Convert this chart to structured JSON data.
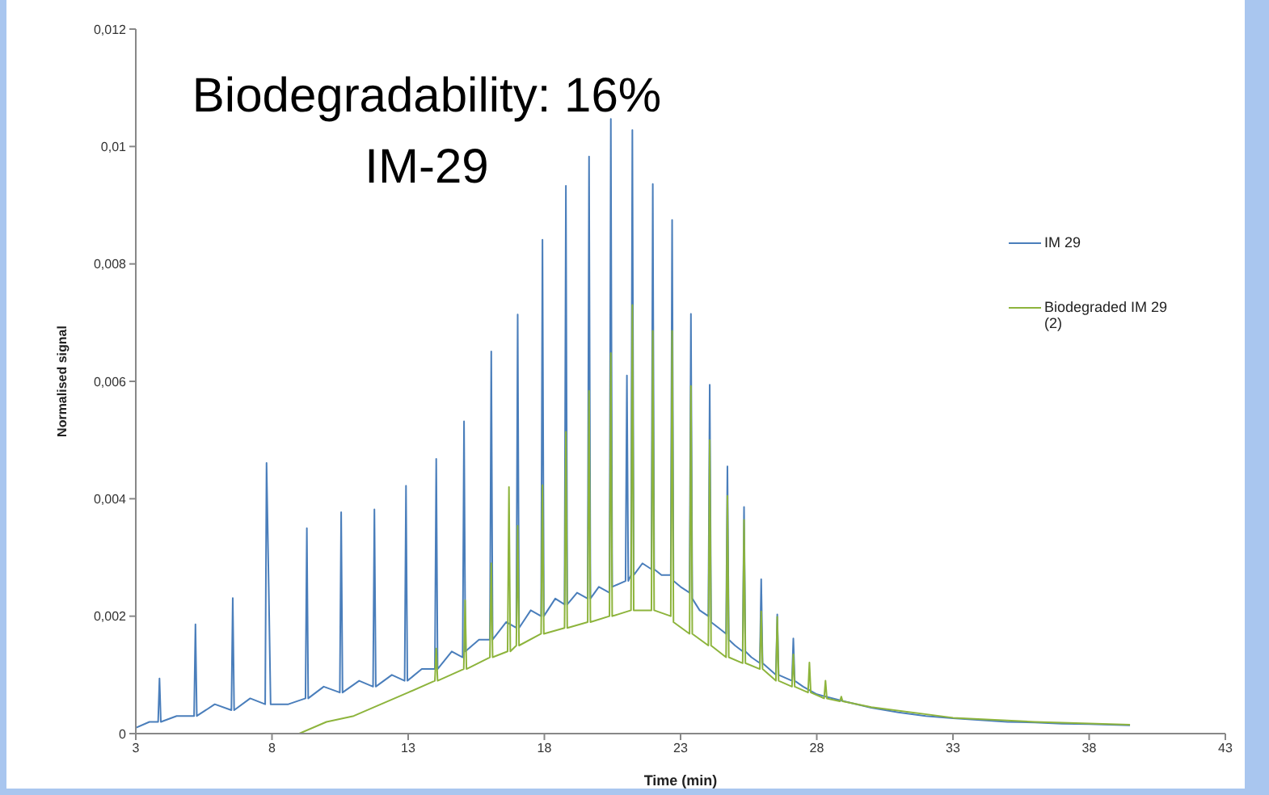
{
  "chart_data": {
    "type": "line",
    "title": "Biodegradability: 16%",
    "subtitle": "IM-29",
    "xlabel": "Time (min)",
    "ylabel": "Normalised signal",
    "xlim": [
      3,
      43
    ],
    "xticks": [
      3,
      8,
      13,
      18,
      23,
      28,
      33,
      38,
      43
    ],
    "ylim": [
      0,
      0.012
    ],
    "yticks": [
      {
        "value": 0,
        "label": "0"
      },
      {
        "value": 0.002,
        "label": "0,002"
      },
      {
        "value": 0.004,
        "label": "0,004"
      },
      {
        "value": 0.006,
        "label": "0,006"
      },
      {
        "value": 0.008,
        "label": "0,008"
      },
      {
        "value": 0.01,
        "label": "0,01"
      },
      {
        "value": 0.012,
        "label": "0,012"
      }
    ],
    "grid": false,
    "legend": "right",
    "marker": "none",
    "line_style": "solid",
    "series": [
      {
        "name": "IM 29",
        "color": "#4a7ebb",
        "x": [
          3,
          3.5,
          3.82,
          3.87,
          3.92,
          4.5,
          5.14,
          5.19,
          5.24,
          5.9,
          6.51,
          6.56,
          6.61,
          7.2,
          7.75,
          7.8,
          7.88,
          7.95,
          8.6,
          9.23,
          9.28,
          9.33,
          9.9,
          10.49,
          10.54,
          10.59,
          11.2,
          11.71,
          11.76,
          11.81,
          12.4,
          12.87,
          12.92,
          12.97,
          13.5,
          13.98,
          14.03,
          14.08,
          14.6,
          15.0,
          15.05,
          15.1,
          15.6,
          16.0,
          16.05,
          16.1,
          16.6,
          16.97,
          17.02,
          17.07,
          17.5,
          17.88,
          17.93,
          17.98,
          18.4,
          18.74,
          18.79,
          18.84,
          19.2,
          19.59,
          19.64,
          19.69,
          20.0,
          20.39,
          20.44,
          20.49,
          20.98,
          21.03,
          21.08,
          21.18,
          21.23,
          21.28,
          21.6,
          21.93,
          21.98,
          22.03,
          22.3,
          22.64,
          22.69,
          22.74,
          23.0,
          23.33,
          23.38,
          23.43,
          23.7,
          24.02,
          24.07,
          24.12,
          24.4,
          24.67,
          24.72,
          24.77,
          25.0,
          25.28,
          25.33,
          25.38,
          25.6,
          25.91,
          25.96,
          26.01,
          26.5,
          26.55,
          26.6,
          27.09,
          27.14,
          27.19,
          27.5,
          28,
          29,
          30,
          31,
          32,
          33,
          34,
          35,
          36,
          37,
          38,
          39.5
        ],
        "values": [
          0.0001,
          0.0002,
          0.0002,
          0.00094,
          0.0002,
          0.0003,
          0.0003,
          0.00186,
          0.0003,
          0.0005,
          0.0004,
          0.00231,
          0.0004,
          0.0006,
          0.0005,
          0.00461,
          0.0025,
          0.0005,
          0.0005,
          0.0006,
          0.0035,
          0.0006,
          0.0008,
          0.0007,
          0.00377,
          0.0007,
          0.0009,
          0.0008,
          0.00382,
          0.0008,
          0.001,
          0.0009,
          0.00422,
          0.0009,
          0.0011,
          0.0011,
          0.00468,
          0.0011,
          0.0014,
          0.0013,
          0.00532,
          0.0014,
          0.0016,
          0.0016,
          0.00651,
          0.0016,
          0.0019,
          0.0018,
          0.00714,
          0.0018,
          0.0021,
          0.002,
          0.00841,
          0.002,
          0.0023,
          0.0022,
          0.00933,
          0.0022,
          0.0024,
          0.0023,
          0.00983,
          0.0023,
          0.0025,
          0.0024,
          0.01047,
          0.0025,
          0.0026,
          0.0061,
          0.0026,
          0.0027,
          0.01028,
          0.0027,
          0.0029,
          0.0028,
          0.00936,
          0.0028,
          0.0027,
          0.0027,
          0.00875,
          0.0026,
          0.0025,
          0.0024,
          0.00715,
          0.0023,
          0.0021,
          0.002,
          0.00594,
          0.0019,
          0.0018,
          0.0017,
          0.00455,
          0.0016,
          0.0015,
          0.0014,
          0.00386,
          0.0014,
          0.0013,
          0.0012,
          0.00263,
          0.0012,
          0.001,
          0.00203,
          0.001,
          0.0009,
          0.00162,
          0.0009,
          0.0008,
          0.00067,
          0.00055,
          0.00044,
          0.00036,
          0.0003,
          0.00026,
          0.00023,
          0.0002,
          0.00019,
          0.00017,
          0.00016,
          0.00014
        ]
      },
      {
        "name": "Biodegraded IM 29 (2)",
        "color": "#8db43c",
        "x": [
          3,
          6,
          9,
          10,
          11,
          12,
          13,
          13.98,
          14.03,
          14.08,
          15.04,
          15.09,
          15.14,
          16.0,
          16.05,
          16.1,
          16.65,
          16.7,
          16.75,
          16.97,
          17.02,
          17.07,
          17.88,
          17.93,
          17.98,
          18.74,
          18.79,
          18.84,
          19.59,
          19.64,
          19.69,
          20.39,
          20.44,
          20.49,
          21.18,
          21.23,
          21.28,
          21.93,
          21.98,
          22.03,
          22.64,
          22.69,
          22.74,
          23.33,
          23.38,
          23.43,
          24.02,
          24.07,
          24.12,
          24.67,
          24.72,
          24.77,
          25.28,
          25.33,
          25.38,
          25.91,
          25.96,
          26.01,
          26.5,
          26.55,
          26.6,
          27.09,
          27.14,
          27.19,
          27.68,
          27.73,
          27.78,
          28.27,
          28.32,
          28.37,
          28.85,
          28.9,
          28.95,
          30,
          33,
          36,
          39.5
        ],
        "values": [
          0,
          0,
          0,
          0.0002,
          0.0003,
          0.0005,
          0.0007,
          0.0009,
          0.00145,
          0.0009,
          0.0011,
          0.00227,
          0.0011,
          0.0013,
          0.0029,
          0.0013,
          0.0014,
          0.0042,
          0.0014,
          0.0015,
          0.00354,
          0.0015,
          0.0017,
          0.00423,
          0.0017,
          0.0018,
          0.00514,
          0.0018,
          0.0019,
          0.00584,
          0.0019,
          0.002,
          0.00648,
          0.002,
          0.0021,
          0.0073,
          0.0021,
          0.0021,
          0.00686,
          0.0021,
          0.002,
          0.00686,
          0.0019,
          0.0017,
          0.00592,
          0.0017,
          0.0015,
          0.005,
          0.0015,
          0.0013,
          0.00405,
          0.0013,
          0.0012,
          0.00364,
          0.0012,
          0.0011,
          0.00208,
          0.0011,
          0.0009,
          0.00199,
          0.0009,
          0.0008,
          0.00135,
          0.0008,
          0.0007,
          0.00121,
          0.0007,
          0.0006,
          0.0009,
          0.0006,
          0.00055,
          0.00063,
          0.00055,
          0.00045,
          0.00027,
          0.0002,
          0.00015
        ]
      }
    ]
  }
}
